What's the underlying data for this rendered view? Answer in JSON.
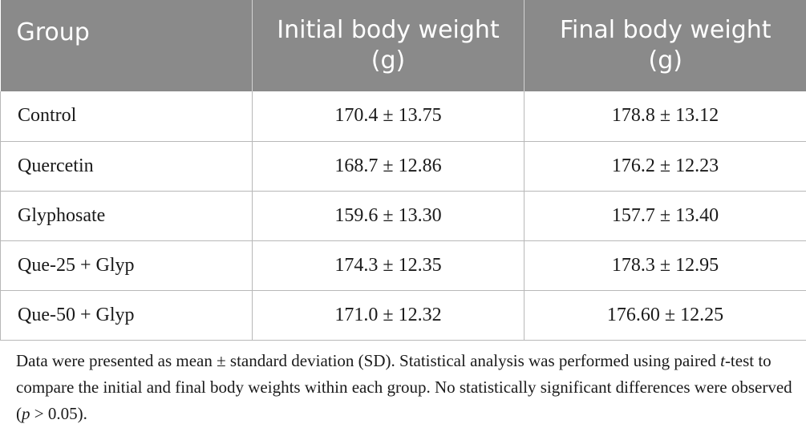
{
  "table": {
    "headers": [
      "Group",
      "Initial body weight (g)",
      "Final body weight (g)"
    ],
    "rows": [
      {
        "group": "Control",
        "initial": "170.4 ± 13.75",
        "final": "178.8 ± 13.12"
      },
      {
        "group": "Quercetin",
        "initial": "168.7 ± 12.86",
        "final": "176.2 ± 12.23"
      },
      {
        "group": "Glyphosate",
        "initial": "159.6 ± 13.30",
        "final": "157.7 ± 13.40"
      },
      {
        "group": "Que-25 + Glyp",
        "initial": "174.3 ± 12.35",
        "final": "178.3 ± 12.95"
      },
      {
        "group": "Que-50 + Glyp",
        "initial": "171.0 ± 12.32",
        "final": "176.60 ± 12.25"
      }
    ]
  },
  "footnote": {
    "part1": "Data were presented as mean ± standard deviation (SD). Statistical analysis was performed using paired ",
    "t_italic": "t",
    "part2": "-test to compare the initial and final body weights within each group. No statistically significant differences were observed (",
    "p_italic": "p",
    "part3": " > 0.05)."
  },
  "colors": {
    "header_background": "#8a8a8a",
    "header_text": "#ffffff",
    "grid_lines": "#b8b8b8"
  }
}
